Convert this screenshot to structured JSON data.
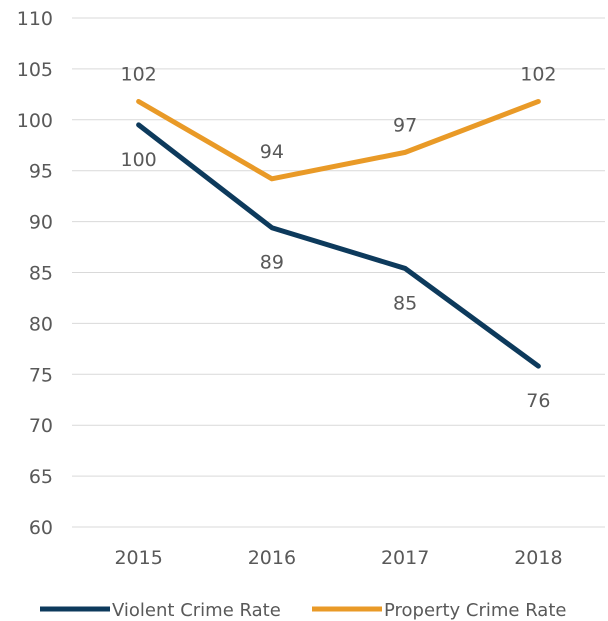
{
  "chart_data": {
    "type": "line",
    "title": "",
    "xlabel": "",
    "ylabel": "",
    "categories": [
      "2015",
      "2016",
      "2017",
      "2018"
    ],
    "ylim": [
      60,
      110
    ],
    "ytick_step": 5,
    "grid": true,
    "legend_position": "bottom",
    "series": [
      {
        "name": "Violent Crime Rate",
        "color": "#0d3a5c",
        "values": [
          99.5,
          89.4,
          85.4,
          75.8
        ],
        "labels": [
          "100",
          "89",
          "85",
          "76"
        ],
        "label_side": "below"
      },
      {
        "name": "Property Crime Rate",
        "color": "#e99a27",
        "values": [
          101.8,
          94.2,
          96.8,
          101.8
        ],
        "labels": [
          "102",
          "94",
          "97",
          "102"
        ],
        "label_side": "above"
      }
    ]
  }
}
